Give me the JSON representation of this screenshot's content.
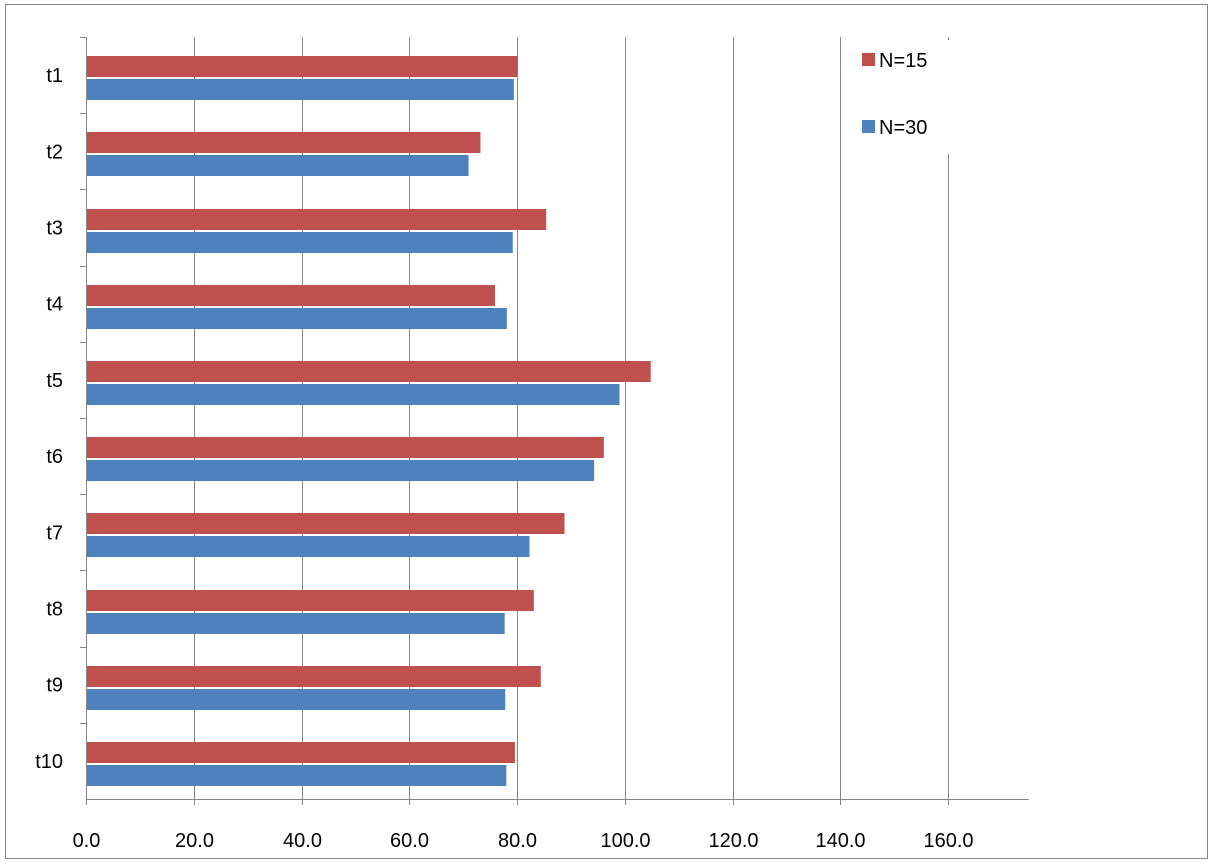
{
  "chart_data": {
    "type": "bar",
    "orientation": "horizontal",
    "title": "",
    "xlabel": "",
    "ylabel": "",
    "categories": [
      "t1",
      "t2",
      "t3",
      "t4",
      "t5",
      "t6",
      "t7",
      "t8",
      "t9",
      "t10"
    ],
    "series": [
      {
        "name": "N=15",
        "color": "#C0504D",
        "values": [
          80.0,
          73.2,
          85.4,
          75.9,
          104.8,
          96.1,
          88.8,
          83.1,
          84.4,
          79.6
        ]
      },
      {
        "name": "N=30",
        "color": "#4F81BD",
        "values": [
          79.4,
          71.0,
          79.2,
          78.1,
          99.0,
          94.3,
          82.3,
          77.7,
          77.8,
          78.0
        ]
      }
    ],
    "xlim": [
      0,
      175
    ],
    "xticks": [
      "0.0",
      "20.0",
      "40.0",
      "60.0",
      "80.0",
      "100.0",
      "120.0",
      "140.0",
      "160.0"
    ],
    "grid": "vertical",
    "legend": "top-right"
  }
}
